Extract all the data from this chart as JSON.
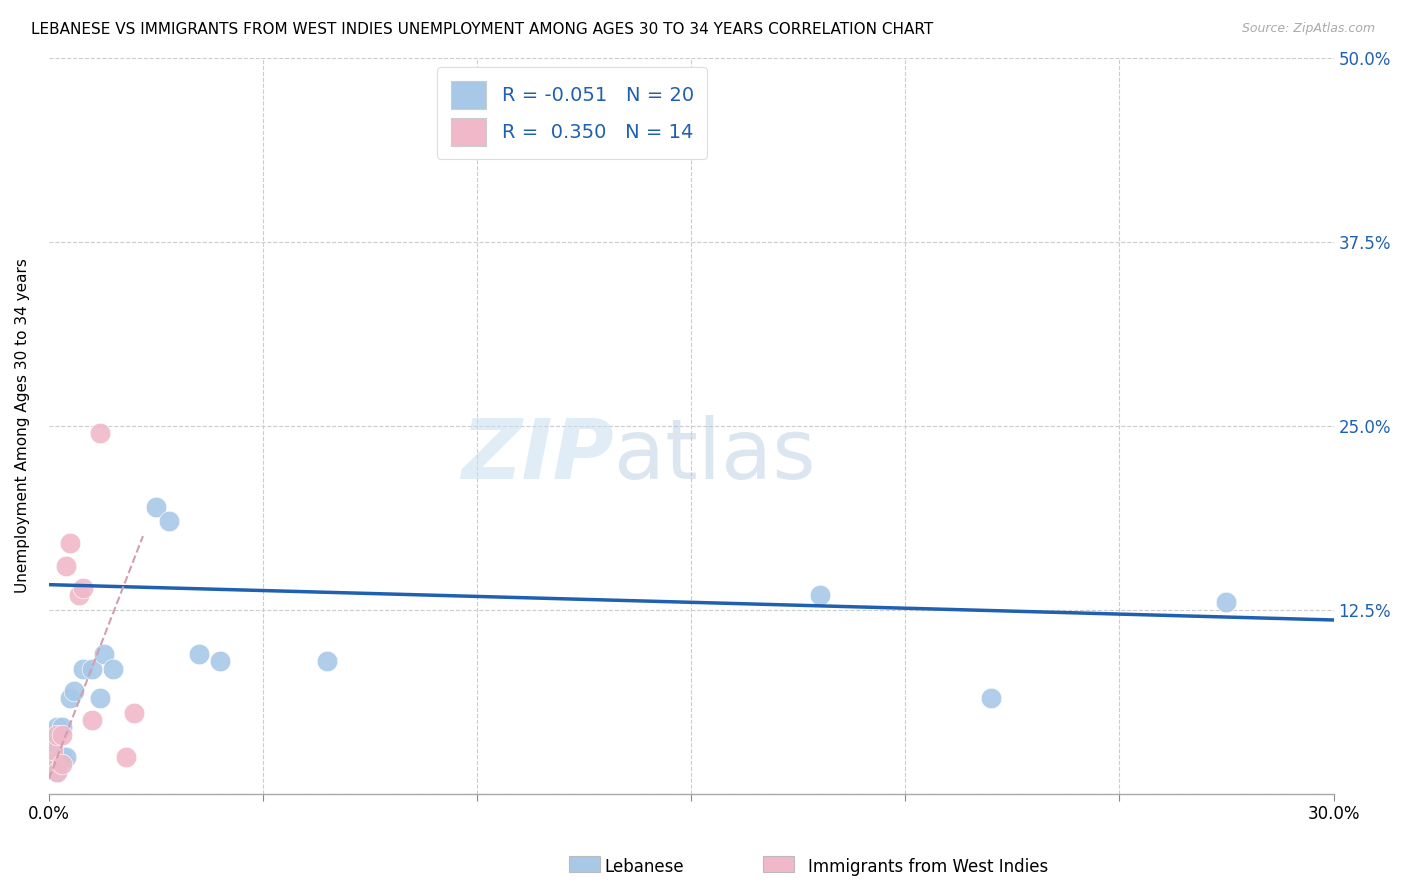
{
  "title": "LEBANESE VS IMMIGRANTS FROM WEST INDIES UNEMPLOYMENT AMONG AGES 30 TO 34 YEARS CORRELATION CHART",
  "source": "Source: ZipAtlas.com",
  "ylabel_label": "Unemployment Among Ages 30 to 34 years",
  "xlim": [
    0.0,
    0.3
  ],
  "ylim": [
    0.0,
    0.5
  ],
  "x_tick_positions": [
    0.0,
    0.05,
    0.1,
    0.15,
    0.2,
    0.25,
    0.3
  ],
  "x_tick_labels_show": [
    "0.0%",
    "",
    "",
    "",
    "",
    "",
    "30.0%"
  ],
  "y_tick_positions": [
    0.0,
    0.125,
    0.25,
    0.375,
    0.5
  ],
  "y_right_labels": [
    "",
    "12.5%",
    "25.0%",
    "37.5%",
    "50.0%"
  ],
  "blue_points_x": [
    0.001,
    0.001,
    0.002,
    0.002,
    0.003,
    0.003,
    0.004,
    0.005,
    0.006,
    0.008,
    0.01,
    0.012,
    0.013,
    0.015,
    0.025,
    0.028,
    0.035,
    0.04,
    0.065,
    0.18,
    0.22,
    0.275
  ],
  "blue_points_y": [
    0.02,
    0.035,
    0.015,
    0.045,
    0.025,
    0.045,
    0.025,
    0.065,
    0.07,
    0.085,
    0.085,
    0.065,
    0.095,
    0.085,
    0.195,
    0.185,
    0.095,
    0.09,
    0.09,
    0.135,
    0.065,
    0.13
  ],
  "pink_points_x": [
    0.001,
    0.001,
    0.002,
    0.002,
    0.003,
    0.003,
    0.004,
    0.005,
    0.007,
    0.008,
    0.01,
    0.012,
    0.018,
    0.02
  ],
  "pink_points_y": [
    0.02,
    0.03,
    0.015,
    0.04,
    0.02,
    0.04,
    0.155,
    0.17,
    0.135,
    0.14,
    0.05,
    0.245,
    0.025,
    0.055
  ],
  "blue_line_x": [
    0.0,
    0.3
  ],
  "blue_line_y": [
    0.142,
    0.118
  ],
  "pink_line_x": [
    0.0,
    0.022
  ],
  "pink_line_y": [
    0.01,
    0.175
  ],
  "blue_color": "#a8c8e8",
  "pink_color": "#f0b8c8",
  "blue_line_color": "#2060b0",
  "pink_line_color": "#e06080",
  "pink_dash_color": "#d0a0b0",
  "background_color": "#ffffff",
  "grid_color": "#cccccc",
  "watermark_zip": "ZIP",
  "watermark_atlas": "atlas",
  "title_fontsize": 11,
  "axis_label_fontsize": 11,
  "tick_fontsize": 12,
  "right_tick_color": "#2060b0"
}
